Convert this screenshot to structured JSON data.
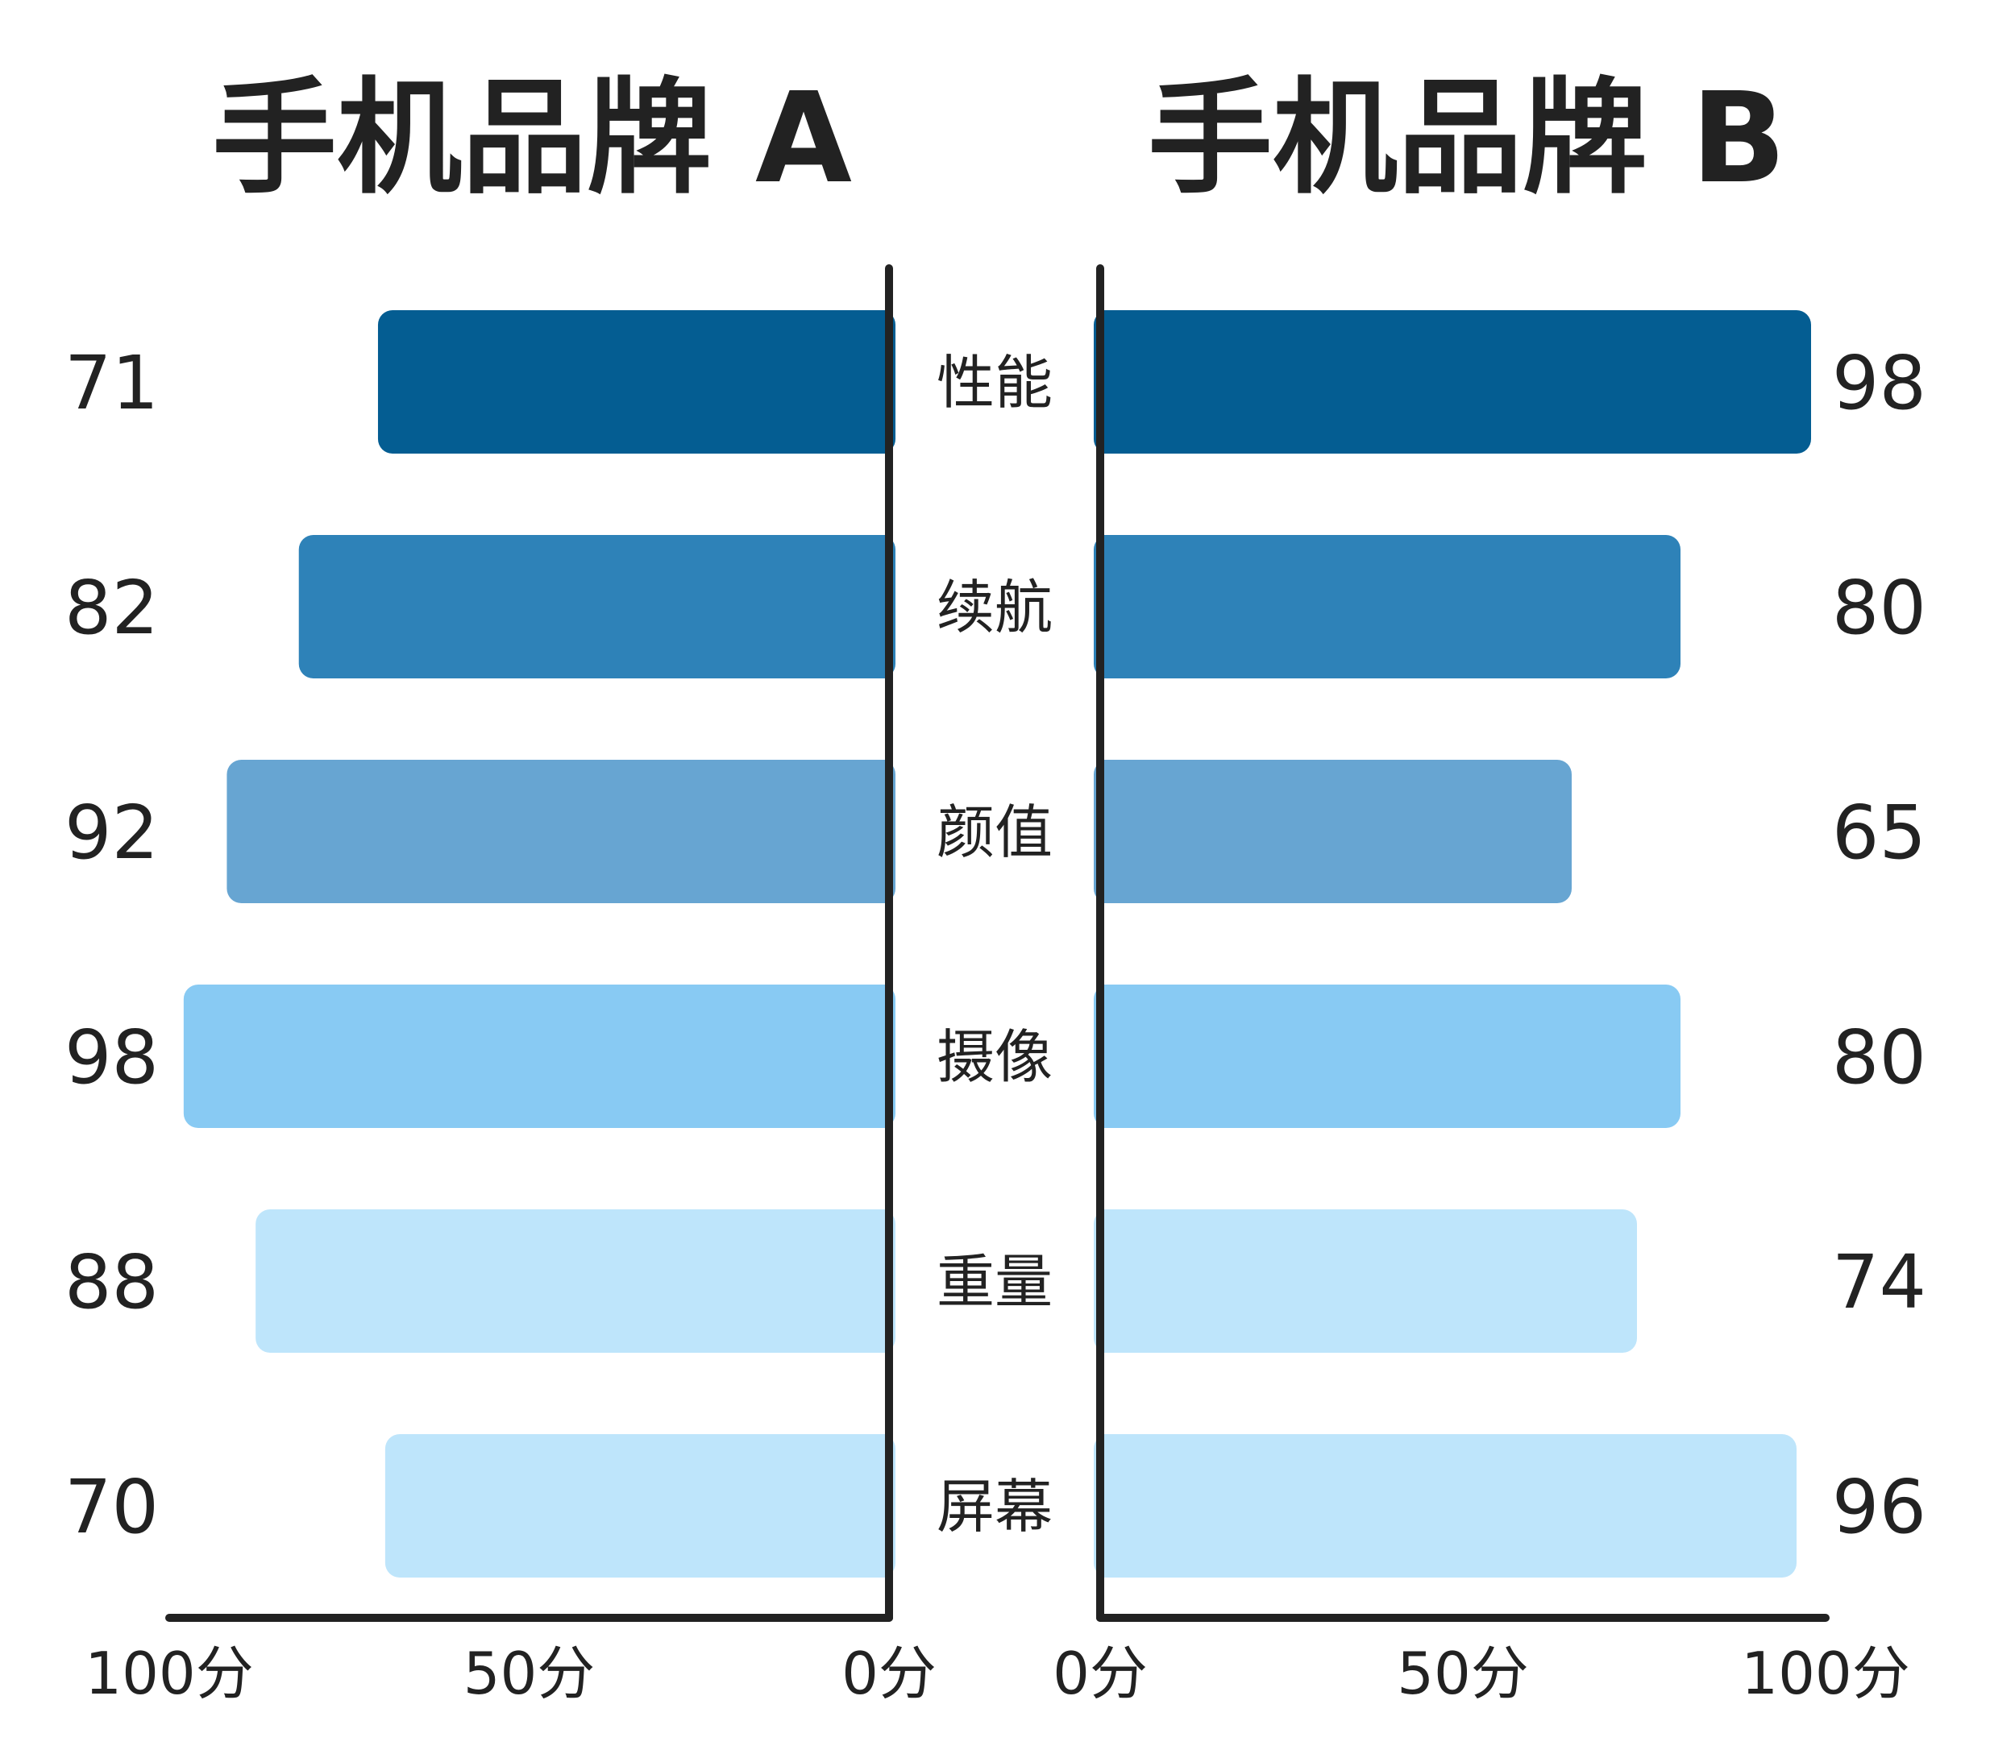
{
  "chart_data": {
    "type": "bar",
    "orientation": "horizontal",
    "layout": "butterfly",
    "categories": [
      "性能",
      "续航",
      "颜值",
      "摄像",
      "重量",
      "屏幕"
    ],
    "series": [
      {
        "name": "手机品牌 A",
        "side": "left",
        "values": [
          71,
          82,
          92,
          98,
          88,
          70
        ]
      },
      {
        "name": "手机品牌 B",
        "side": "right",
        "values": [
          98,
          80,
          65,
          80,
          74,
          96
        ]
      }
    ],
    "bar_colors": [
      "#045d92",
      "#2e82b8",
      "#67a5d2",
      "#88caf3",
      "#bee5fb",
      "#bee5fb"
    ],
    "axis_ticks_left": [
      "100分",
      "50分",
      "0分"
    ],
    "axis_ticks_right": [
      "0分",
      "50分",
      "100分"
    ],
    "xlim": [
      0,
      100
    ],
    "grid": false,
    "legend": "none"
  }
}
